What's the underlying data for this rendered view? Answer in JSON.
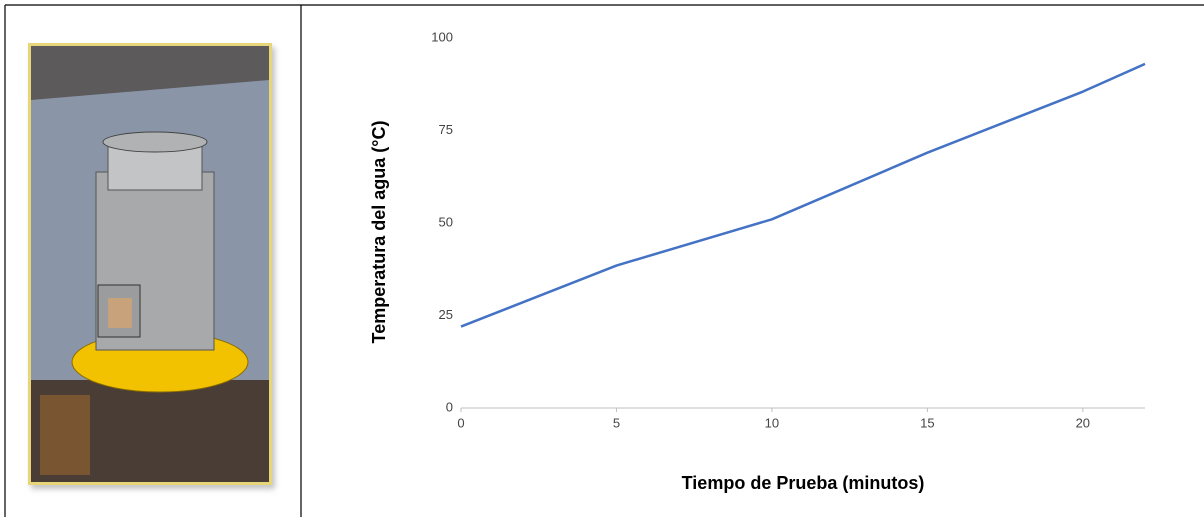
{
  "chart_data": {
    "type": "line",
    "xlabel": "Tiempo de Prueba (minutos)",
    "ylabel": "Temperatura del agua (°C)",
    "x": [
      0,
      5,
      10,
      15,
      20,
      22
    ],
    "series": [
      {
        "color": "#4472c4",
        "values": [
          22,
          38.5,
          51,
          69,
          85.5,
          93
        ]
      }
    ],
    "xlim": [
      0,
      22
    ],
    "ylim": [
      0,
      100
    ],
    "xticks": [
      0,
      5,
      10,
      15,
      20
    ],
    "yticks": [
      0,
      25,
      50,
      75,
      100
    ],
    "grid": false
  }
}
